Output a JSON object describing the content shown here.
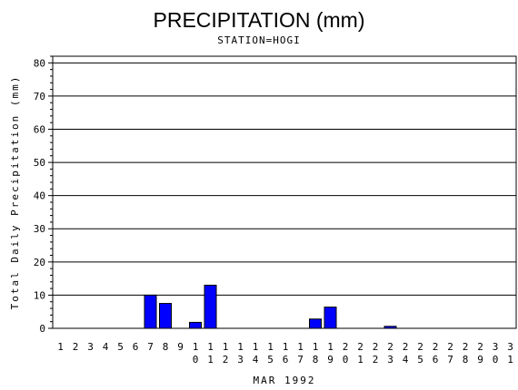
{
  "chart_data": {
    "type": "bar",
    "title": "PRECIPITATION (mm)",
    "subtitle": "STATION=HOGI",
    "xlabel": "MAR 1992",
    "ylabel": "Total Daily Precipitation (mm)",
    "ylim": [
      0,
      82
    ],
    "yticks": [
      0,
      10,
      20,
      30,
      40,
      50,
      60,
      70,
      80
    ],
    "grid": true,
    "categories": [
      "1",
      "2",
      "3",
      "4",
      "5",
      "6",
      "7",
      "8",
      "9",
      "10",
      "11",
      "12",
      "13",
      "14",
      "15",
      "16",
      "17",
      "18",
      "19",
      "20",
      "21",
      "22",
      "23",
      "24",
      "25",
      "26",
      "27",
      "28",
      "29",
      "30",
      "31"
    ],
    "values": [
      0,
      0,
      0,
      0,
      0,
      0,
      10,
      7.5,
      0,
      1.8,
      13,
      0,
      0,
      0,
      0,
      0,
      0,
      2.8,
      6.4,
      0,
      0,
      0,
      0.6,
      0,
      0,
      0,
      0,
      0,
      0,
      0,
      0
    ],
    "bar_color": "#0000ff"
  }
}
